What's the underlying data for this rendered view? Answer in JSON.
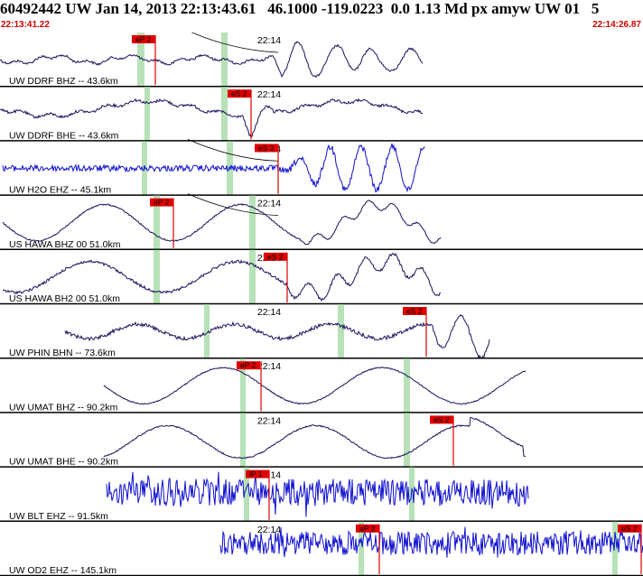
{
  "header": {
    "title": "60492442 UW Jan 14, 2013 22:13:43.61   46.1000 -119.0223  0.0 1.13 Md px amyw UW 01   5",
    "time_start": "22:13:41.22",
    "time_end": "22:14:26.87"
  },
  "colors": {
    "pick_box": "#e00000",
    "pick_line": "#e00000",
    "trace_short_period": "#1010d0",
    "trace_broadband": "#1e0f5a",
    "coda_shading": "#b7e2b7",
    "divider": "#000000",
    "header_time": "#d10000"
  },
  "minute_label": "22:14",
  "channels": [
    {
      "label": "UW DDRF BHZ -- 43.6km",
      "color": "broadband",
      "picks": [
        {
          "text": "eP 2"
        }
      ]
    },
    {
      "label": "UW DDRF BHE -- 43.6km",
      "color": "broadband",
      "picks": [
        {
          "text": "eS 2"
        }
      ]
    },
    {
      "label": "UW H2O EHZ -- 45.1km",
      "color": "short",
      "picks": [
        {
          "text": "eS 2"
        }
      ]
    },
    {
      "label": "US HAWA BHZ 00 51.0km",
      "color": "broadband",
      "picks": [
        {
          "text": "eP 2"
        }
      ]
    },
    {
      "label": "US HAWA BH2 00 51.0km",
      "color": "broadband",
      "picks": [
        {
          "text": "eS 2"
        }
      ]
    },
    {
      "label": "UW PHIN BHN -- 73.6km",
      "color": "broadband",
      "picks": [
        {
          "text": "eS 2"
        }
      ]
    },
    {
      "label": "UW UMAT BHZ -- 90.2km",
      "color": "broadband",
      "picks": [
        {
          "text": "eP 2"
        }
      ]
    },
    {
      "label": "UW UMAT BHE -- 90.2km",
      "color": "broadband",
      "picks": [
        {
          "text": "eS 2"
        }
      ]
    },
    {
      "label": "UW BLT EHZ -- 91.5km",
      "color": "short",
      "picks": [
        {
          "text": "iP 1"
        }
      ]
    },
    {
      "label": "UW OD2 EHZ -- 145.1km",
      "color": "short",
      "picks": [
        {
          "text": "eP 2"
        },
        {
          "text": "eS 2"
        }
      ]
    }
  ]
}
